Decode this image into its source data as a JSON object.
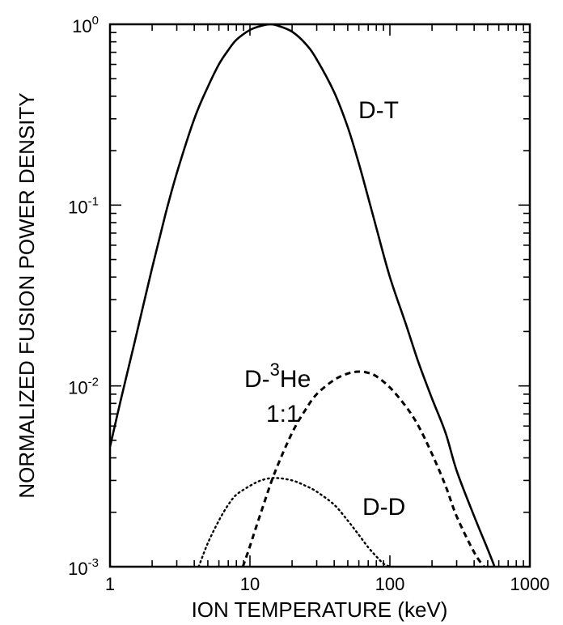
{
  "chart_data": {
    "type": "line",
    "title": "",
    "xlabel": "ION TEMPERATURE (keV)",
    "ylabel": "NORMALIZED FUSION POWER DENSITY",
    "xscale": "log",
    "yscale": "log",
    "xlim": [
      1,
      1000
    ],
    "ylim": [
      0.001,
      1
    ],
    "grid": false,
    "x_ticks": [
      {
        "value": 1,
        "label": "1"
      },
      {
        "value": 10,
        "label": "10"
      },
      {
        "value": 100,
        "label": "100"
      },
      {
        "value": 1000,
        "label": "1000"
      }
    ],
    "y_ticks": [
      {
        "value": 1,
        "base": "10",
        "exp": "0"
      },
      {
        "value": 0.1,
        "base": "10",
        "exp": "-1"
      },
      {
        "value": 0.01,
        "base": "10",
        "exp": "-2"
      },
      {
        "value": 0.001,
        "base": "10",
        "exp": "-3"
      }
    ],
    "series": [
      {
        "id": "dt",
        "label_main": "D-T",
        "style": "solid",
        "color": "#000000",
        "x": [
          1.0,
          1.2,
          1.5,
          2.0,
          2.5,
          3.0,
          4.0,
          5.0,
          6.0,
          7.0,
          8.0,
          10.0,
          12.0,
          14.0,
          16.0,
          20.0,
          25.0,
          30.0,
          40.0,
          50.0,
          60.0,
          70.0,
          80.0,
          100.0,
          130.0,
          160.0,
          200.0,
          250.0,
          300.0,
          400.0,
          500.0,
          560.0
        ],
        "y": [
          0.0046,
          0.0085,
          0.0175,
          0.045,
          0.09,
          0.15,
          0.3,
          0.45,
          0.6,
          0.72,
          0.82,
          0.93,
          0.98,
          1.0,
          0.98,
          0.91,
          0.78,
          0.64,
          0.42,
          0.27,
          0.17,
          0.11,
          0.075,
          0.04,
          0.022,
          0.0135,
          0.0085,
          0.0055,
          0.0034,
          0.0019,
          0.00125,
          0.001
        ]
      },
      {
        "id": "dhe3",
        "label_main": "D-",
        "label_sup": "3",
        "label_rest": "He",
        "label_line2": "1:1",
        "style": "dashed",
        "color": "#000000",
        "x": [
          8.9,
          10.0,
          12.0,
          15.0,
          20.0,
          25.0,
          30.0,
          40.0,
          50.0,
          60.0,
          70.0,
          80.0,
          100.0,
          130.0,
          160.0,
          200.0,
          250.0,
          300.0,
          400.0,
          470.0
        ],
        "y": [
          0.001,
          0.0013,
          0.002,
          0.0033,
          0.0055,
          0.0074,
          0.009,
          0.0108,
          0.0117,
          0.012,
          0.0118,
          0.0113,
          0.0098,
          0.0077,
          0.006,
          0.0042,
          0.0028,
          0.0019,
          0.0012,
          0.001
        ]
      },
      {
        "id": "dd",
        "label_main": "D-D",
        "style": "dotted",
        "color": "#000000",
        "x": [
          4.3,
          5.0,
          6.0,
          7.0,
          8.0,
          10.0,
          12.0,
          15.0,
          20.0,
          25.0,
          30.0,
          40.0,
          50.0,
          60.0,
          70.0,
          80.0,
          90.0,
          100.0
        ],
        "y": [
          0.001,
          0.00135,
          0.0018,
          0.0022,
          0.0025,
          0.0028,
          0.003,
          0.0031,
          0.003,
          0.0028,
          0.0026,
          0.0022,
          0.0018,
          0.0015,
          0.00128,
          0.00114,
          0.00104,
          0.001
        ]
      }
    ]
  }
}
